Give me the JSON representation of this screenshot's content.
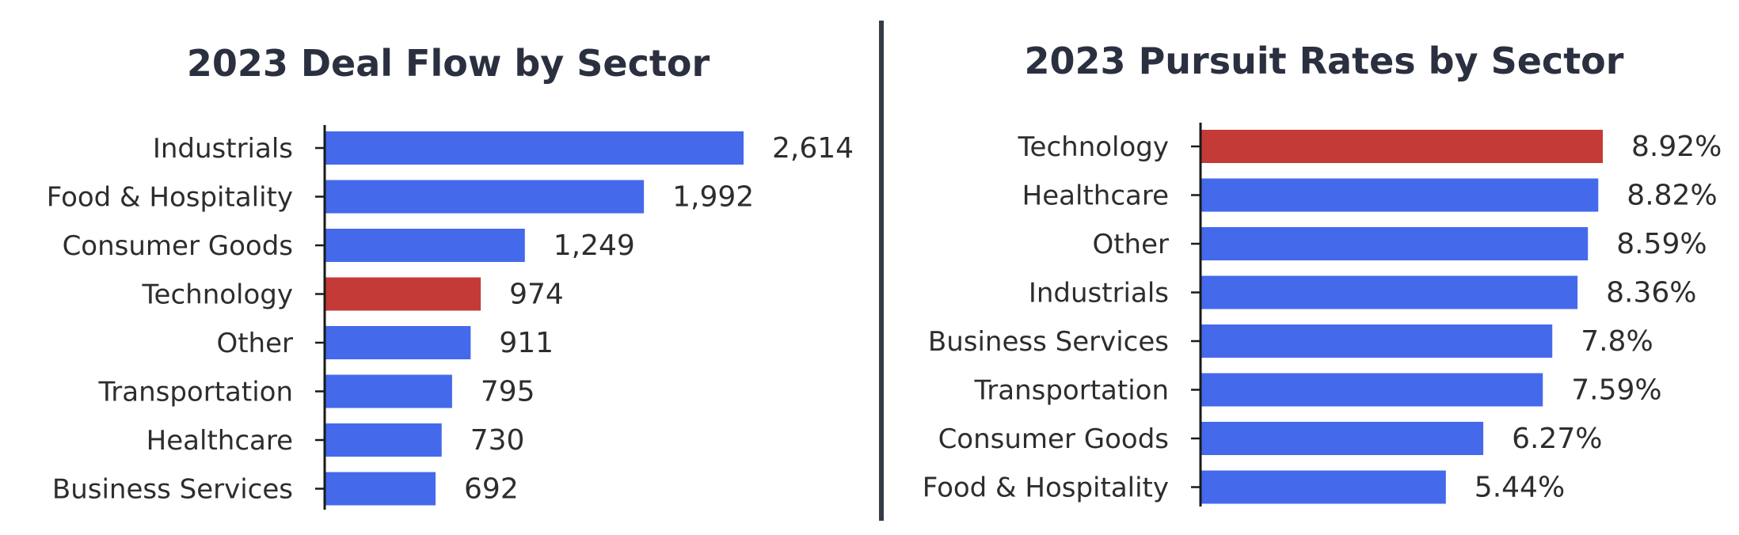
{
  "colors": {
    "bar": "#4469eb",
    "highlight": "#c43a36",
    "axis": "#1a1a1a",
    "divider": "#353b45"
  },
  "chart_data": [
    {
      "type": "bar",
      "orientation": "horizontal",
      "title": "2023 Deal Flow by Sector",
      "categories": [
        "Industrials",
        "Food & Hospitality",
        "Consumer Goods",
        "Technology",
        "Other",
        "Transportation",
        "Healthcare",
        "Business Services"
      ],
      "values": [
        2614,
        1992,
        1249,
        974,
        911,
        795,
        730,
        692
      ],
      "value_labels": [
        "2,614",
        "1,992",
        "1,249",
        "974",
        "911",
        "795",
        "730",
        "692"
      ],
      "highlight": "Technology",
      "xlim": [
        0,
        2614
      ],
      "grid": false,
      "legend": "none"
    },
    {
      "type": "bar",
      "orientation": "horizontal",
      "title": "2023 Pursuit Rates by Sector",
      "categories": [
        "Technology",
        "Healthcare",
        "Other",
        "Industrials",
        "Business Services",
        "Transportation",
        "Consumer Goods",
        "Food & Hospitality"
      ],
      "values": [
        8.92,
        8.82,
        8.59,
        8.36,
        7.8,
        7.59,
        6.27,
        5.44
      ],
      "value_labels": [
        "8.92%",
        "8.82%",
        "8.59%",
        "8.36%",
        "7.8%",
        "7.59%",
        "6.27%",
        "5.44%"
      ],
      "highlight": "Technology",
      "xlim": [
        0,
        8.92
      ],
      "grid": false,
      "legend": "none"
    }
  ]
}
